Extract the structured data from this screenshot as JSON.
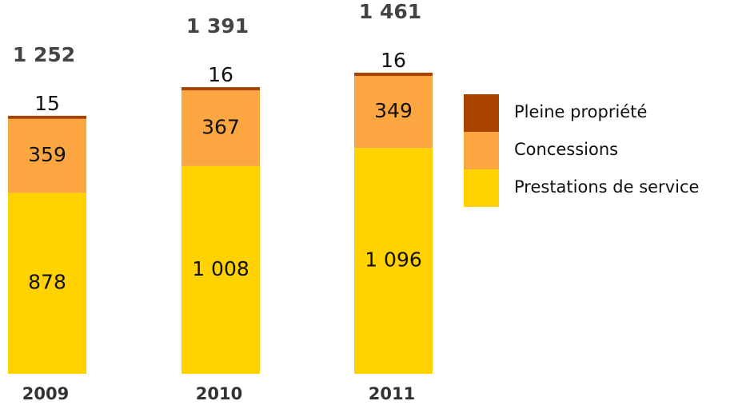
{
  "chart_data": {
    "type": "stacked_bar",
    "categories": [
      "2009",
      "2010",
      "2011"
    ],
    "series": [
      {
        "name": "Pleine propriété",
        "color": "#a84300",
        "values": [
          15,
          16,
          16
        ]
      },
      {
        "name": "Concessions",
        "color": "#fba640",
        "values": [
          359,
          367,
          349
        ]
      },
      {
        "name": "Prestations de service",
        "color": "#ffd200",
        "values": [
          878,
          1008,
          1096
        ],
        "value_labels": [
          "878",
          "1 008",
          "1 096"
        ]
      }
    ],
    "totals": [
      1252,
      1391,
      1461
    ],
    "totals_labels": [
      "1 252",
      "1 391",
      "1 461"
    ],
    "legend": "right"
  }
}
